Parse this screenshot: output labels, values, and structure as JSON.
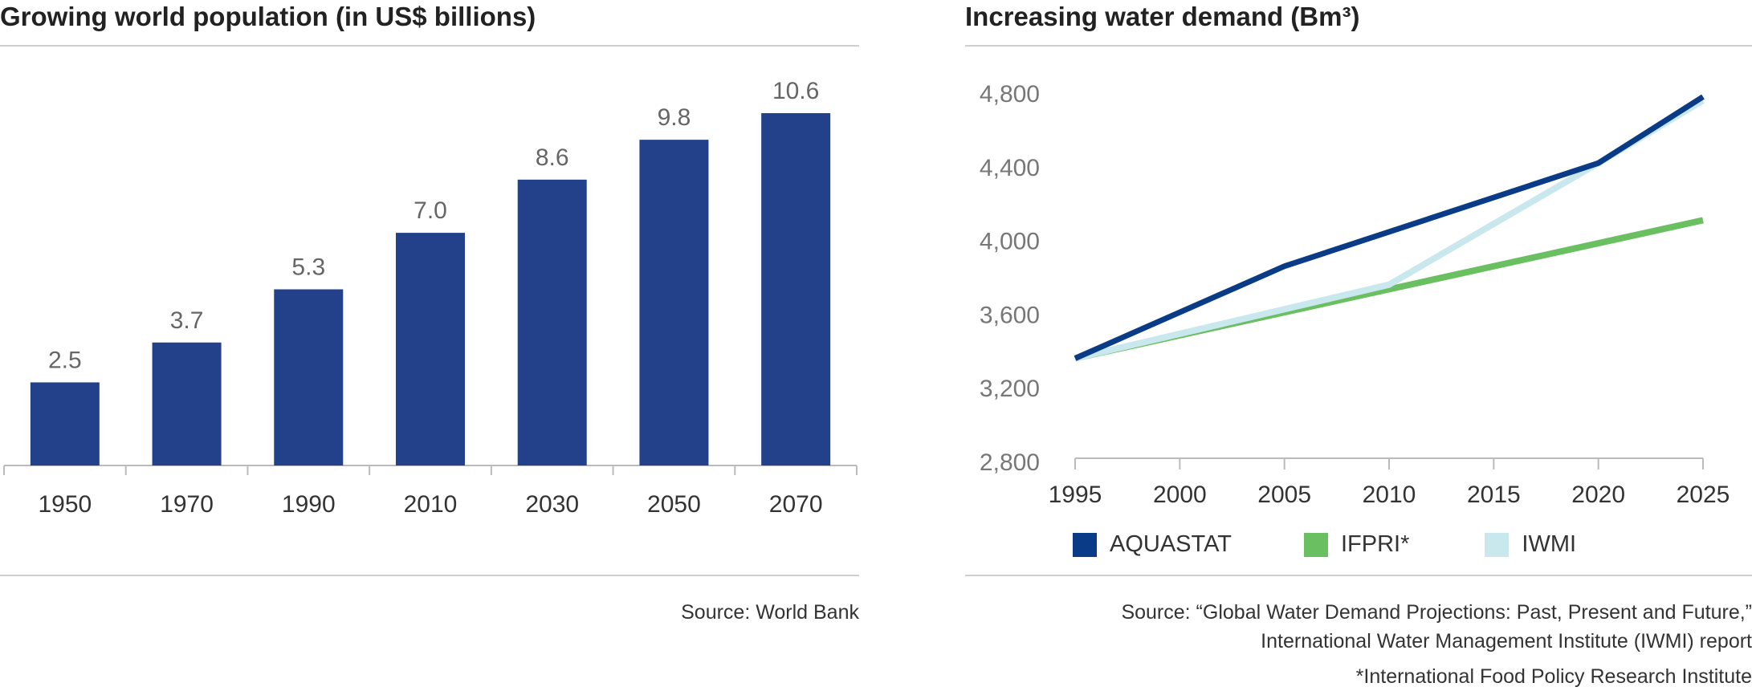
{
  "left_panel": {
    "title": "Growing world population (in US$ billions)",
    "source": "Source: World Bank"
  },
  "right_panel": {
    "title": "Increasing water demand (Bm³)",
    "source_line1": "Source: “Global Water Demand Projections: Past, Present and Future,”",
    "source_line2": "International Water Management Institute (IWMI) report",
    "footnote": "*International Food Policy Research Institute"
  },
  "colors": {
    "bar": "#22418a",
    "aquastat": "#0a3b86",
    "ifpri": "#6abf61",
    "iwmi": "#c9e8ee",
    "rule": "#cfcfcf"
  },
  "chart_data": [
    {
      "type": "bar",
      "title": "Growing world population (in US$ billions)",
      "categories": [
        "1950",
        "1970",
        "1990",
        "2010",
        "2030",
        "2050",
        "2070"
      ],
      "values": [
        2.5,
        3.7,
        5.3,
        7.0,
        8.6,
        9.8,
        10.6
      ],
      "value_labels": [
        "2.5",
        "3.7",
        "5.3",
        "7.0",
        "8.6",
        "9.8",
        "10.6"
      ],
      "ylim": [
        0,
        10.6
      ],
      "grid": false,
      "legend": "none"
    },
    {
      "type": "line",
      "title": "Increasing water demand (Bm³)",
      "x": [
        1995,
        2000,
        2005,
        2010,
        2015,
        2020,
        2025
      ],
      "x_tick_labels": [
        "1995",
        "2000",
        "2005",
        "2010",
        "2015",
        "2020",
        "2025"
      ],
      "y_ticks": [
        2800,
        3200,
        3600,
        4000,
        4400,
        4800
      ],
      "y_tick_labels": [
        "2,800",
        "3,200",
        "3,600",
        "4,000",
        "4,400",
        "4,800"
      ],
      "ylim": [
        2800,
        4800
      ],
      "xlim": [
        1995,
        2025
      ],
      "grid": false,
      "legend": "bottom",
      "series": [
        {
          "name": "AQUASTAT",
          "color": "#0a3b86",
          "points": [
            [
              1995,
              3360
            ],
            [
              2005,
              3860
            ],
            [
              2020,
              4420
            ],
            [
              2025,
              4780
            ]
          ]
        },
        {
          "name": "IFPRI*",
          "color": "#6abf61",
          "points": [
            [
              1995,
              3360
            ],
            [
              2025,
              4110
            ]
          ]
        },
        {
          "name": "IWMI",
          "color": "#c9e8ee",
          "points": [
            [
              1995,
              3360
            ],
            [
              2010,
              3760
            ],
            [
              2020,
              4420
            ],
            [
              2025,
              4760
            ]
          ]
        }
      ]
    }
  ]
}
